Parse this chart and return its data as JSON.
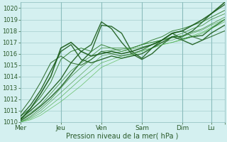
{
  "xlabel": "Pression niveau de la mer( hPa )",
  "ylim": [
    1010.0,
    1020.5
  ],
  "xlim": [
    0,
    121
  ],
  "background_color": "#d4f0f0",
  "plot_bg_color": "#d4f0f0",
  "grid_major_color": "#8bbcbc",
  "grid_minor_color": "#a8d4d4",
  "label_color": "#2a5a2a",
  "tick_color": "#2a5a2a",
  "x_tick_positions": [
    0,
    24,
    48,
    72,
    96,
    113,
    121
  ],
  "x_tick_labels": [
    "Mer",
    "Jeu",
    "Ven",
    "Sam",
    "Dim",
    "Lu",
    ""
  ],
  "y_ticks": [
    1010,
    1011,
    1012,
    1013,
    1014,
    1015,
    1016,
    1017,
    1018,
    1019,
    1020
  ],
  "figsize": [
    3.2,
    2.0
  ],
  "dpi": 100,
  "lines": [
    {
      "x": [
        0,
        6,
        12,
        18,
        24,
        30,
        36,
        42,
        48,
        54,
        60,
        66,
        72,
        78,
        84,
        90,
        96,
        102,
        108,
        113,
        121
      ],
      "y": [
        1010.1,
        1010.7,
        1011.4,
        1012.2,
        1013.1,
        1014.2,
        1015.3,
        1016.2,
        1018.5,
        1018.4,
        1017.8,
        1016.2,
        1015.6,
        1016.5,
        1017.2,
        1017.8,
        1017.3,
        1017.5,
        1017.6,
        1018.2,
        1019.0
      ],
      "color": "#1a5c1a",
      "lw": 1.0
    },
    {
      "x": [
        0,
        6,
        12,
        18,
        24,
        30,
        36,
        42,
        48,
        54,
        60,
        66,
        72,
        78,
        84,
        90,
        96,
        102,
        108,
        113,
        121
      ],
      "y": [
        1010.3,
        1011.0,
        1011.8,
        1012.8,
        1013.8,
        1015.2,
        1016.2,
        1016.8,
        1018.8,
        1018.2,
        1017.0,
        1016.0,
        1015.5,
        1016.0,
        1016.8,
        1017.5,
        1017.5,
        1018.0,
        1018.8,
        1019.5,
        1020.3
      ],
      "color": "#1a5c1a",
      "lw": 1.0
    },
    {
      "x": [
        0,
        6,
        12,
        18,
        24,
        30,
        36,
        42,
        48,
        54,
        60,
        66,
        72,
        78,
        84,
        90,
        96,
        102,
        108,
        113,
        121
      ],
      "y": [
        1010.5,
        1011.2,
        1012.2,
        1013.5,
        1015.5,
        1016.2,
        1016.5,
        1016.2,
        1016.8,
        1016.5,
        1016.2,
        1016.5,
        1016.8,
        1017.2,
        1017.5,
        1018.0,
        1018.2,
        1018.5,
        1018.8,
        1019.2,
        1019.8
      ],
      "color": "#2a7a2a",
      "lw": 0.7
    },
    {
      "x": [
        0,
        6,
        12,
        18,
        24,
        30,
        36,
        42,
        48,
        54,
        60,
        66,
        72,
        78,
        84,
        90,
        96,
        102,
        108,
        113,
        121
      ],
      "y": [
        1010.2,
        1010.8,
        1011.5,
        1012.5,
        1013.5,
        1014.5,
        1015.2,
        1015.8,
        1016.5,
        1016.5,
        1016.5,
        1016.5,
        1016.8,
        1017.0,
        1017.2,
        1017.5,
        1017.8,
        1018.2,
        1018.5,
        1019.0,
        1019.5
      ],
      "color": "#3a8a3a",
      "lw": 0.6
    },
    {
      "x": [
        0,
        6,
        12,
        18,
        24,
        30,
        36,
        42,
        48,
        54,
        60,
        66,
        72,
        78,
        84,
        90,
        96,
        102,
        108,
        113,
        121
      ],
      "y": [
        1010.0,
        1010.5,
        1011.2,
        1012.0,
        1013.0,
        1014.0,
        1014.8,
        1015.5,
        1016.2,
        1016.3,
        1016.4,
        1016.5,
        1016.8,
        1017.0,
        1017.2,
        1017.4,
        1017.6,
        1017.9,
        1018.2,
        1018.6,
        1019.2
      ],
      "color": "#3a8a3a",
      "lw": 0.6
    },
    {
      "x": [
        0,
        6,
        12,
        18,
        24,
        30,
        36,
        42,
        48,
        54,
        60,
        66,
        72,
        78,
        84,
        90,
        96,
        102,
        108,
        113,
        121
      ],
      "y": [
        1010.0,
        1010.4,
        1011.0,
        1011.8,
        1012.6,
        1013.4,
        1014.2,
        1015.0,
        1015.8,
        1016.0,
        1016.2,
        1016.4,
        1016.6,
        1016.8,
        1017.0,
        1017.2,
        1017.5,
        1017.8,
        1018.1,
        1018.5,
        1019.0
      ],
      "color": "#4a9a4a",
      "lw": 0.5
    },
    {
      "x": [
        0,
        6,
        12,
        18,
        24,
        30,
        36,
        42,
        48,
        54,
        60,
        66,
        72,
        78,
        84,
        90,
        96,
        102,
        108,
        113,
        121
      ],
      "y": [
        1010.0,
        1010.3,
        1010.8,
        1011.5,
        1012.2,
        1013.0,
        1013.8,
        1014.5,
        1015.2,
        1015.5,
        1015.8,
        1016.0,
        1016.3,
        1016.5,
        1016.8,
        1017.0,
        1017.2,
        1017.5,
        1017.8,
        1018.2,
        1018.8
      ],
      "color": "#4aaa4a",
      "lw": 0.5
    },
    {
      "x": [
        0,
        6,
        12,
        18,
        24,
        30,
        36,
        42,
        48,
        54,
        60,
        66,
        72,
        78,
        84,
        90,
        96,
        102,
        108,
        113,
        121
      ],
      "y": [
        1010.0,
        1010.2,
        1010.6,
        1011.2,
        1011.8,
        1012.5,
        1013.2,
        1014.0,
        1014.8,
        1015.2,
        1015.6,
        1015.9,
        1016.2,
        1016.5,
        1016.8,
        1017.0,
        1017.3,
        1017.6,
        1017.9,
        1018.3,
        1019.0
      ],
      "color": "#5aba5a",
      "lw": 0.5
    },
    {
      "x": [
        0,
        6,
        12,
        18,
        24,
        30,
        36,
        42,
        48,
        54,
        60,
        66,
        72,
        78,
        84,
        90,
        96,
        102,
        108,
        113,
        121
      ],
      "y": [
        1010.5,
        1011.5,
        1012.8,
        1014.5,
        1016.2,
        1016.8,
        1015.5,
        1015.2,
        1015.5,
        1015.8,
        1015.6,
        1015.8,
        1016.0,
        1016.5,
        1017.0,
        1017.5,
        1017.2,
        1016.8,
        1017.2,
        1017.8,
        1018.5
      ],
      "color": "#1a5c1a",
      "lw": 1.0
    },
    {
      "x": [
        0,
        6,
        12,
        18,
        24,
        30,
        36,
        42,
        48,
        54,
        60,
        66,
        72,
        78,
        84,
        90,
        96,
        102,
        108,
        113,
        121
      ],
      "y": [
        1010.8,
        1012.0,
        1013.5,
        1015.2,
        1015.8,
        1015.2,
        1015.0,
        1015.5,
        1016.2,
        1016.0,
        1015.8,
        1016.0,
        1016.3,
        1016.8,
        1017.2,
        1017.8,
        1018.0,
        1017.5,
        1017.2,
        1017.5,
        1018.0
      ],
      "color": "#2a6a2a",
      "lw": 0.8
    },
    {
      "x": [
        0,
        6,
        12,
        18,
        24,
        30,
        36,
        42,
        48,
        54,
        60,
        66,
        72,
        78,
        84,
        90,
        96,
        102,
        108,
        113,
        121
      ],
      "y": [
        1010.2,
        1011.2,
        1012.5,
        1014.0,
        1016.5,
        1017.0,
        1016.2,
        1015.8,
        1016.0,
        1016.2,
        1016.0,
        1016.2,
        1016.5,
        1016.8,
        1017.2,
        1017.8,
        1018.0,
        1018.5,
        1019.0,
        1019.5,
        1020.5
      ],
      "color": "#1a5c1a",
      "lw": 1.2
    }
  ],
  "vlines": [
    0,
    24,
    48,
    72,
    96,
    113
  ]
}
